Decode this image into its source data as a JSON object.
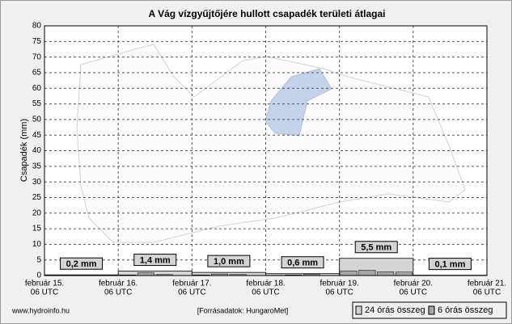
{
  "chart_data": {
    "type": "bar",
    "title": "A Vág vízgyűjtőjére hullott csapadék területi átlagai",
    "y_label": "Csapadék (mm)",
    "xtick_labels": [
      [
        "február 15.",
        "06 UTC"
      ],
      [
        "február 16.",
        "06 UTC"
      ],
      [
        "február 17.",
        "06 UTC"
      ],
      [
        "február 18.",
        "06 UTC"
      ],
      [
        "február 19.",
        "06 UTC"
      ],
      [
        "február 20.",
        "06 UTC"
      ],
      [
        "február 21.",
        "06 UTC"
      ]
    ],
    "series": [
      {
        "name": "24 órás összeg",
        "color": "#d4d4d4",
        "values": [
          0.2,
          1.4,
          1.0,
          0.6,
          5.5,
          0.1
        ],
        "value_labels": [
          "0,2 mm",
          "1,4 mm",
          "1,0 mm",
          "0,6 mm",
          "5,5 mm",
          "0,1 mm"
        ]
      },
      {
        "name": "6 órás összeg",
        "color": "#a6a6a6",
        "values": [
          [
            0,
            0.1,
            0.1,
            0
          ],
          [
            0.2,
            0.9,
            0.3,
            0
          ],
          [
            0.2,
            0.5,
            0.3,
            0
          ],
          [
            0.1,
            0.2,
            0.3,
            0
          ],
          [
            1.5,
            1.7,
            1.2,
            1.1
          ],
          [
            0.1,
            0,
            0,
            0
          ]
        ]
      }
    ],
    "ylim": [
      0,
      80
    ],
    "yticks": [
      0,
      5,
      10,
      15,
      20,
      25,
      30,
      35,
      40,
      45,
      50,
      55,
      60,
      65,
      70,
      75,
      80
    ],
    "grid": true,
    "footer_left": "www.hydroinfo.hu",
    "footer_source": "[Forrásadatok: HungaroMet]"
  }
}
